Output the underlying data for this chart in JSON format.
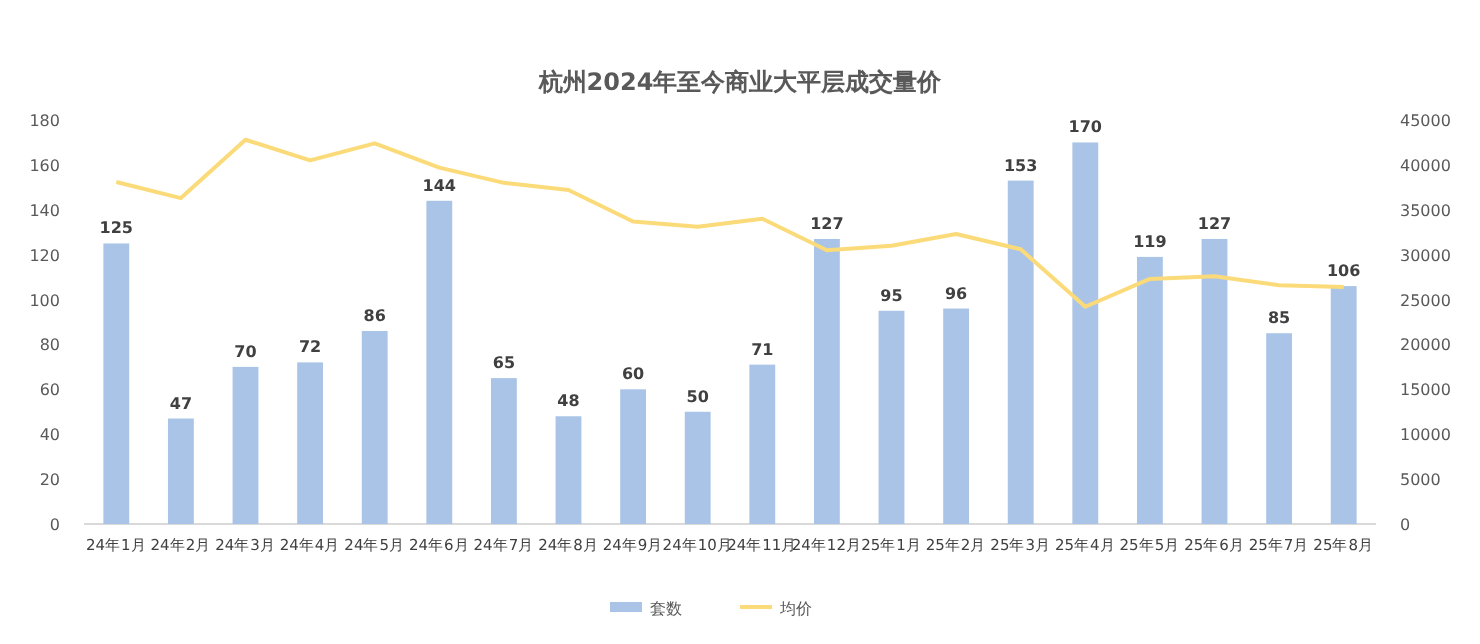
{
  "chart_data": {
    "type": "bar",
    "title": "杭州2024年至今商业大平层成交量价",
    "categories": [
      "24年1月",
      "24年2月",
      "24年3月",
      "24年4月",
      "24年5月",
      "24年6月",
      "24年7月",
      "24年8月",
      "24年9月",
      "24年10月",
      "24年11月",
      "24年12月",
      "25年1月",
      "25年2月",
      "25年3月",
      "25年4月",
      "25年5月",
      "25年6月",
      "25年7月",
      "25年8月"
    ],
    "series": [
      {
        "name": "套数",
        "color": "#a9c4e6",
        "values": [
          125,
          47,
          70,
          72,
          86,
          144,
          65,
          48,
          60,
          50,
          71,
          127,
          95,
          96,
          153,
          170,
          119,
          127,
          85,
          106
        ],
        "value_labels": [
          "125",
          "47",
          "70",
          "72",
          "86",
          "144",
          "65",
          "48",
          "60",
          "50",
          "71",
          "127",
          "95",
          "96",
          "153",
          "170",
          "119",
          "127",
          "85",
          "106"
        ]
      },
      {
        "name": "均价",
        "type": "line",
        "axis": "y2",
        "color": "#fbdb79",
        "values": [
          38100,
          36300,
          42800,
          40500,
          42400,
          39700,
          38000,
          37200,
          33700,
          33100,
          34000,
          30500,
          31000,
          32300,
          30600,
          24200,
          27300,
          27600,
          26600,
          26400
        ]
      }
    ],
    "ylim": [
      0,
      180
    ],
    "yticks": [
      0,
      20,
      40,
      60,
      80,
      100,
      120,
      140,
      160,
      180
    ],
    "y2lim": [
      0,
      45000
    ],
    "y2ticks": [
      0,
      5000,
      10000,
      15000,
      20000,
      25000,
      30000,
      35000,
      40000,
      45000
    ],
    "legend": "bottom",
    "marker": "none",
    "line_style": "solid"
  }
}
